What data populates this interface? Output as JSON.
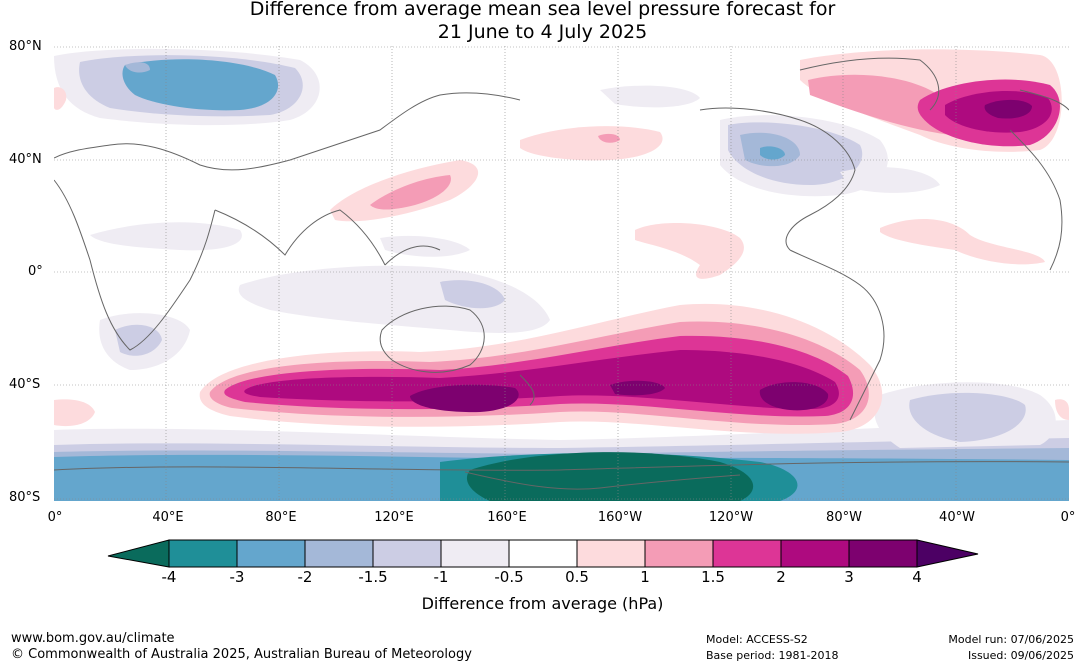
{
  "title": {
    "line1": "Difference from average mean sea level pressure forecast for",
    "line2": "21 June to 4 July 2025"
  },
  "axes": {
    "lat_labels": [
      "80°N",
      "40°N",
      "0°",
      "40°S",
      "80°S"
    ],
    "lon_labels": [
      "0°",
      "40°E",
      "80°E",
      "120°E",
      "160°E",
      "160°W",
      "120°W",
      "80°W",
      "40°W",
      "0°"
    ]
  },
  "colorbar": {
    "title": "Difference from average (hPa)",
    "tick_labels": [
      "-4",
      "-3",
      "-2",
      "-1.5",
      "-1",
      "-0.5",
      "0.5",
      "1",
      "1.5",
      "2",
      "3",
      "4"
    ],
    "colors": [
      "#0a6b5c",
      "#1f8f98",
      "#64a6cd",
      "#a4b8d8",
      "#cccde4",
      "#efecf3",
      "#ffffff",
      "#fddbdd",
      "#f49cb6",
      "#dd3596",
      "#ae0a7f",
      "#7d016f",
      "#4c0064"
    ]
  },
  "footer": {
    "website": "www.bom.gov.au/climate",
    "copyright": "© Commonwealth of Australia 2025, Australian Bureau of Meteorology",
    "model": "Model: ACCESS-S2",
    "base_period": "Base period: 1981-2018",
    "model_run": "Model run: 07/06/2025",
    "issued": "Issued: 09/06/2025"
  }
}
